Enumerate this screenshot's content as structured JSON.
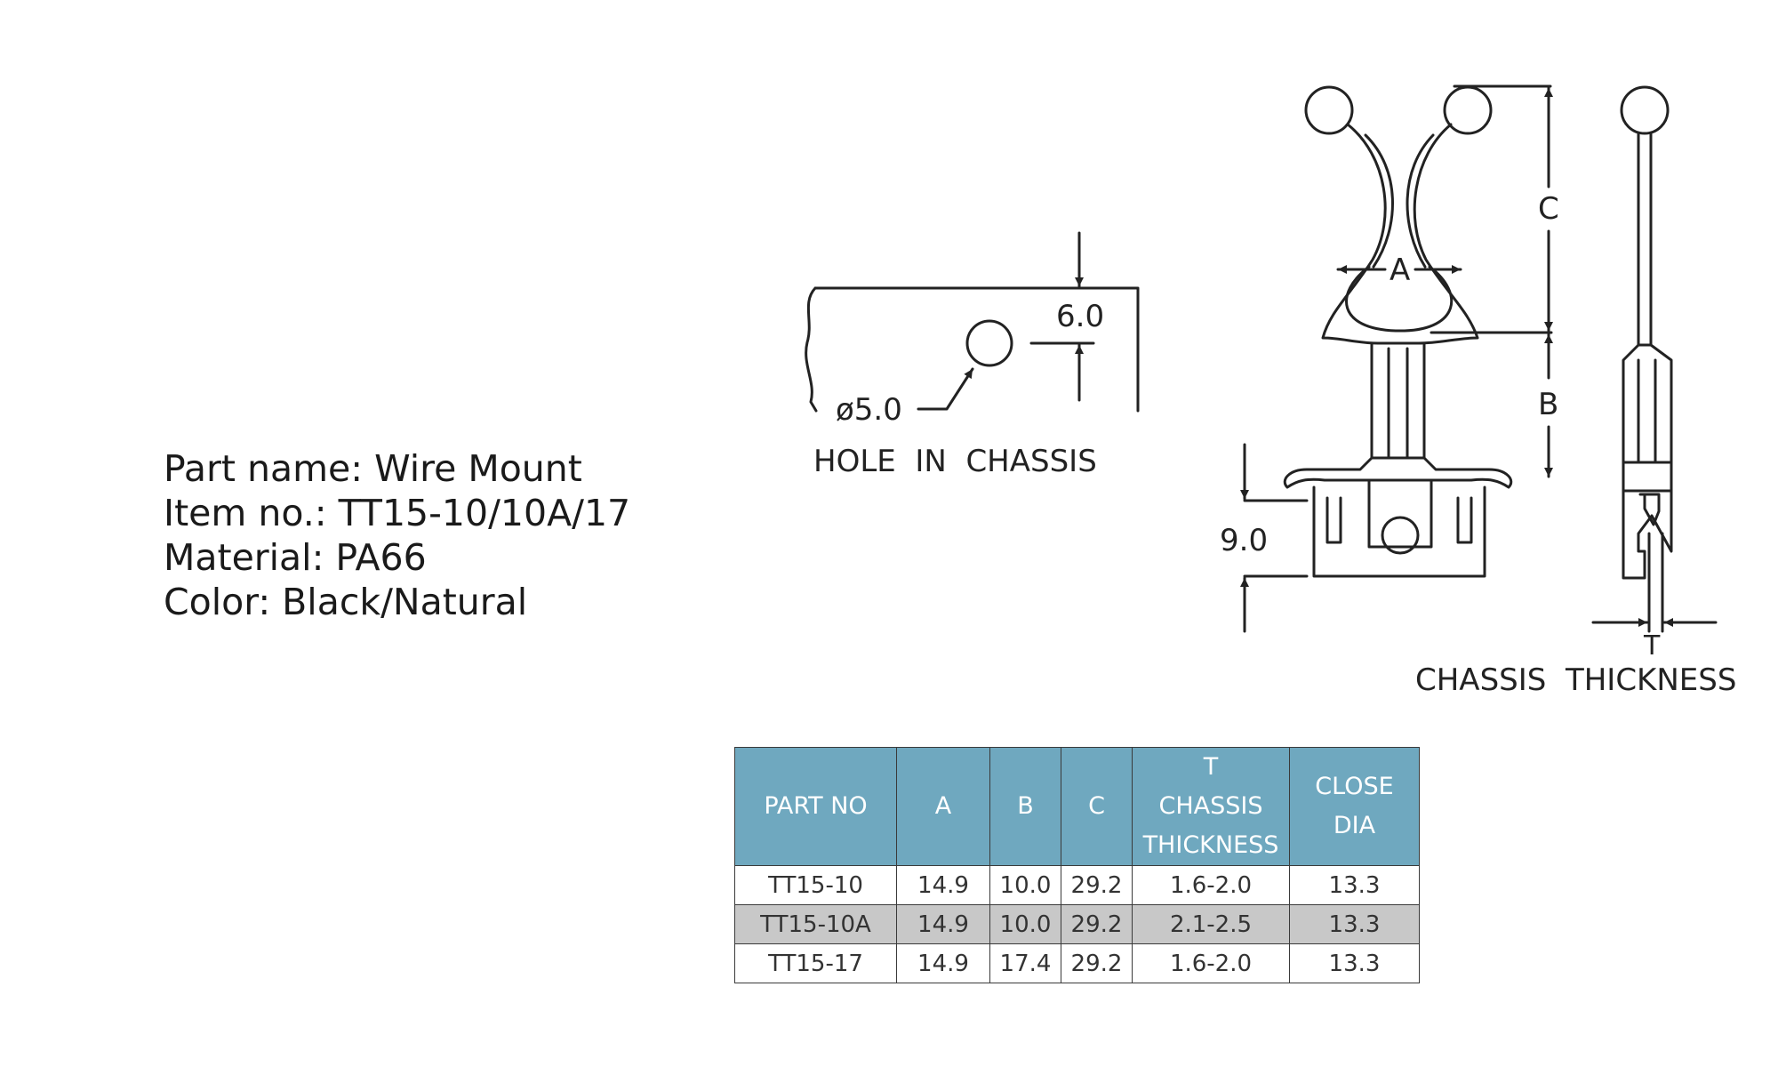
{
  "specs": {
    "part_name": "Part name: Wire Mount",
    "item_no": "Item no.: TT15-10/10A/17",
    "material": "Material: PA66",
    "color": "Color: Black/Natural"
  },
  "drawing": {
    "hole_dimension_top": "6.0",
    "hole_diameter": "ø5.0",
    "hole_caption": "HOLE  IN  CHASSIS",
    "label_a": "A",
    "label_b": "B",
    "label_c": "C",
    "base_height": "9.0",
    "label_t": "T",
    "thickness_caption": "CHASSIS  THICKNESS"
  },
  "table": {
    "headers": {
      "part_no": "PART NO",
      "a": "A",
      "b": "B",
      "c": "C",
      "t_line1": "T",
      "t_line2": "CHASSIS",
      "t_line3": "THICKNESS",
      "close_line1": "CLOSE",
      "close_line2": "DIA"
    },
    "rows": [
      {
        "part_no": "TT15-10",
        "a": "14.9",
        "b": "10.0",
        "c": "29.2",
        "t": "1.6-2.0",
        "close_dia": "13.3"
      },
      {
        "part_no": "TT15-10A",
        "a": "14.9",
        "b": "10.0",
        "c": "29.2",
        "t": "2.1-2.5",
        "close_dia": "13.3"
      },
      {
        "part_no": "TT15-17",
        "a": "14.9",
        "b": "17.4",
        "c": "29.2",
        "t": "1.6-2.0",
        "close_dia": "13.3"
      }
    ],
    "header_color": "#6fa8bf",
    "alt_row_color": "#c8c8c8"
  }
}
